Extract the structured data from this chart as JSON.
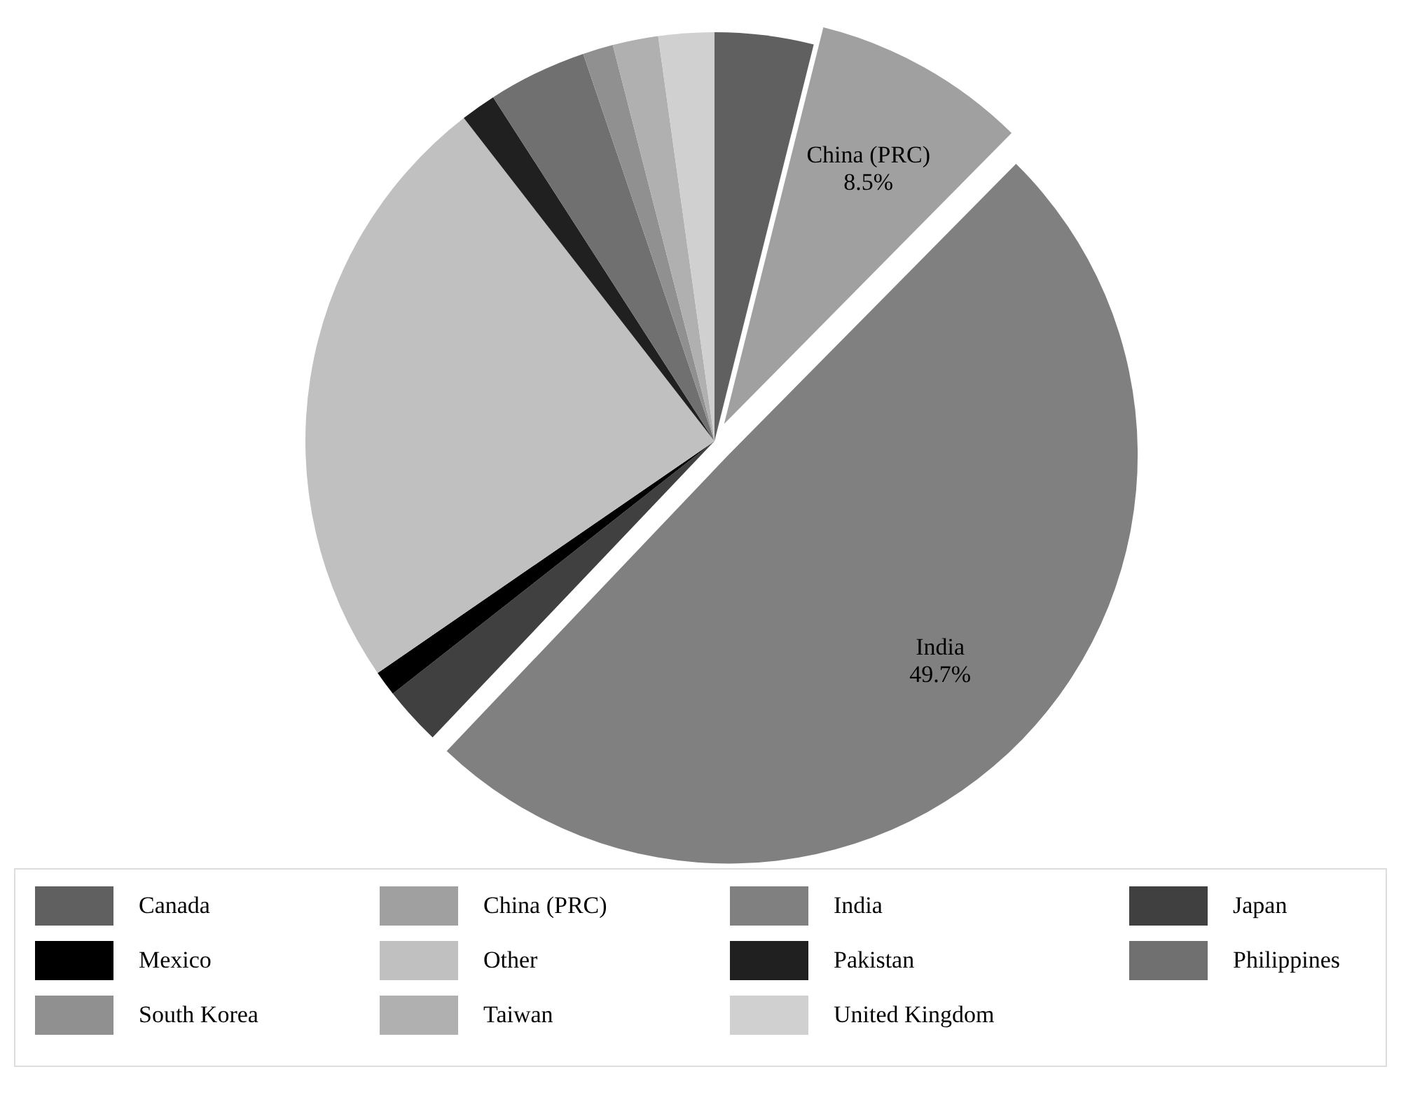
{
  "chart_data": {
    "type": "pie",
    "categories": [
      "Canada",
      "China (PRC)",
      "India",
      "Japan",
      "Mexico",
      "Other",
      "Pakistan",
      "Philippines",
      "South Korea",
      "Taiwan",
      "United Kingdom"
    ],
    "values": [
      3.9,
      8.5,
      49.7,
      2.3,
      1.0,
      24.1,
      1.4,
      3.9,
      1.2,
      1.8,
      2.2
    ],
    "colors": [
      "#606060",
      "#a0a0a0",
      "#808080",
      "#404040",
      "#000000",
      "#c0c0c0",
      "#202020",
      "#707070",
      "#909090",
      "#b0b0b0",
      "#d0d0d0"
    ],
    "value_labels": [
      null,
      "8.5%",
      "49.7%",
      null,
      null,
      null,
      null,
      null,
      null,
      null,
      null
    ],
    "legend": "bottom"
  }
}
